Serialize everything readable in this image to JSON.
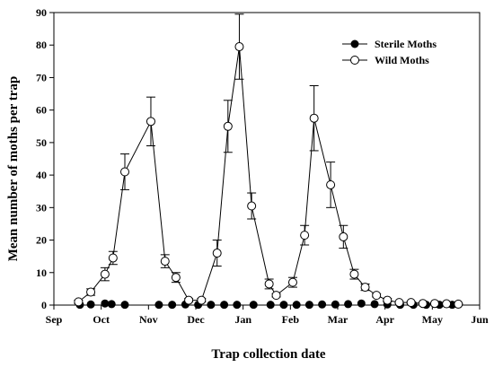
{
  "chart_data": {
    "type": "scatter",
    "xlabel": "Trap collection date",
    "ylabel": "Mean number of moths per trap",
    "x_ticks": [
      "Sep",
      "Oct",
      "Nov",
      "Dec",
      "Jan",
      "Feb",
      "Mar",
      "Apr",
      "May",
      "Jun"
    ],
    "xlim": [
      0,
      9
    ],
    "ylim": [
      0,
      90
    ],
    "y_ticks": [
      0,
      10,
      20,
      30,
      40,
      50,
      60,
      70,
      80,
      90
    ],
    "legend_position": "top-right",
    "grid": false,
    "series": [
      {
        "name": "Sterile Moths",
        "marker": "filled-circle",
        "color": "#000000",
        "connected": false,
        "points": [
          {
            "x": 0.55,
            "y": 0.1
          },
          {
            "x": 0.78,
            "y": 0.2
          },
          {
            "x": 1.08,
            "y": 0.5
          },
          {
            "x": 1.22,
            "y": 0.3
          },
          {
            "x": 1.5,
            "y": 0.1
          },
          {
            "x": 2.22,
            "y": 0.1
          },
          {
            "x": 2.5,
            "y": 0.1
          },
          {
            "x": 2.78,
            "y": 0.2
          },
          {
            "x": 3.05,
            "y": 0.1
          },
          {
            "x": 3.32,
            "y": 0.1
          },
          {
            "x": 3.6,
            "y": 0.1
          },
          {
            "x": 3.87,
            "y": 0.1
          },
          {
            "x": 4.22,
            "y": 0.1
          },
          {
            "x": 4.58,
            "y": 0.1
          },
          {
            "x": 4.86,
            "y": 0.1
          },
          {
            "x": 5.13,
            "y": 0.1
          },
          {
            "x": 5.4,
            "y": 0.1
          },
          {
            "x": 5.67,
            "y": 0.2
          },
          {
            "x": 5.95,
            "y": 0.2
          },
          {
            "x": 6.22,
            "y": 0.3
          },
          {
            "x": 6.5,
            "y": 0.5
          },
          {
            "x": 6.78,
            "y": 0.3
          },
          {
            "x": 7.05,
            "y": 0.2
          },
          {
            "x": 7.32,
            "y": 0.1
          },
          {
            "x": 7.6,
            "y": 0.1
          },
          {
            "x": 7.87,
            "y": 0.1
          },
          {
            "x": 8.15,
            "y": 0.1
          },
          {
            "x": 8.42,
            "y": 0.1
          }
        ]
      },
      {
        "name": "Wild Moths",
        "marker": "open-circle",
        "color": "#000000",
        "connected": true,
        "points": [
          {
            "x": 0.52,
            "y": 1,
            "err": 0.5
          },
          {
            "x": 0.78,
            "y": 4,
            "err": 1
          },
          {
            "x": 1.08,
            "y": 9.5,
            "err": 2
          },
          {
            "x": 1.25,
            "y": 14.5,
            "err": 2
          },
          {
            "x": 1.5,
            "y": 41,
            "err": 5.5
          },
          {
            "x": 2.05,
            "y": 56.5,
            "err": 7.5
          },
          {
            "x": 2.35,
            "y": 13.5,
            "err": 2
          },
          {
            "x": 2.58,
            "y": 8.5,
            "err": 1.5
          },
          {
            "x": 2.85,
            "y": 1.5,
            "err": 0.5
          },
          {
            "x": 3.12,
            "y": 1.5,
            "err": 0.5
          },
          {
            "x": 3.45,
            "y": 16,
            "err": 4
          },
          {
            "x": 3.68,
            "y": 55,
            "err": 8
          },
          {
            "x": 3.92,
            "y": 79.5,
            "err": 10
          },
          {
            "x": 4.18,
            "y": 30.5,
            "err": 4
          },
          {
            "x": 4.55,
            "y": 6.5,
            "err": 1.5
          },
          {
            "x": 4.7,
            "y": 3,
            "err": 0.5
          },
          {
            "x": 5.05,
            "y": 7,
            "err": 1.5
          },
          {
            "x": 5.3,
            "y": 21.5,
            "err": 3
          },
          {
            "x": 5.5,
            "y": 57.5,
            "err": 10
          },
          {
            "x": 5.85,
            "y": 37,
            "err": 7
          },
          {
            "x": 6.12,
            "y": 21,
            "err": 3.5
          },
          {
            "x": 6.35,
            "y": 9.5,
            "err": 1.5
          },
          {
            "x": 6.58,
            "y": 5.5,
            "err": 1
          },
          {
            "x": 6.82,
            "y": 3,
            "err": 0.5
          },
          {
            "x": 7.05,
            "y": 1.5,
            "err": 0.5
          },
          {
            "x": 7.3,
            "y": 0.8,
            "err": 0.3
          },
          {
            "x": 7.55,
            "y": 0.8,
            "err": 0.3
          },
          {
            "x": 7.8,
            "y": 0.5,
            "err": 0.2
          },
          {
            "x": 8.05,
            "y": 0.5,
            "err": 0.2
          },
          {
            "x": 8.3,
            "y": 0.4,
            "err": 0.2
          },
          {
            "x": 8.55,
            "y": 0.3,
            "err": 0.1
          }
        ]
      }
    ]
  }
}
